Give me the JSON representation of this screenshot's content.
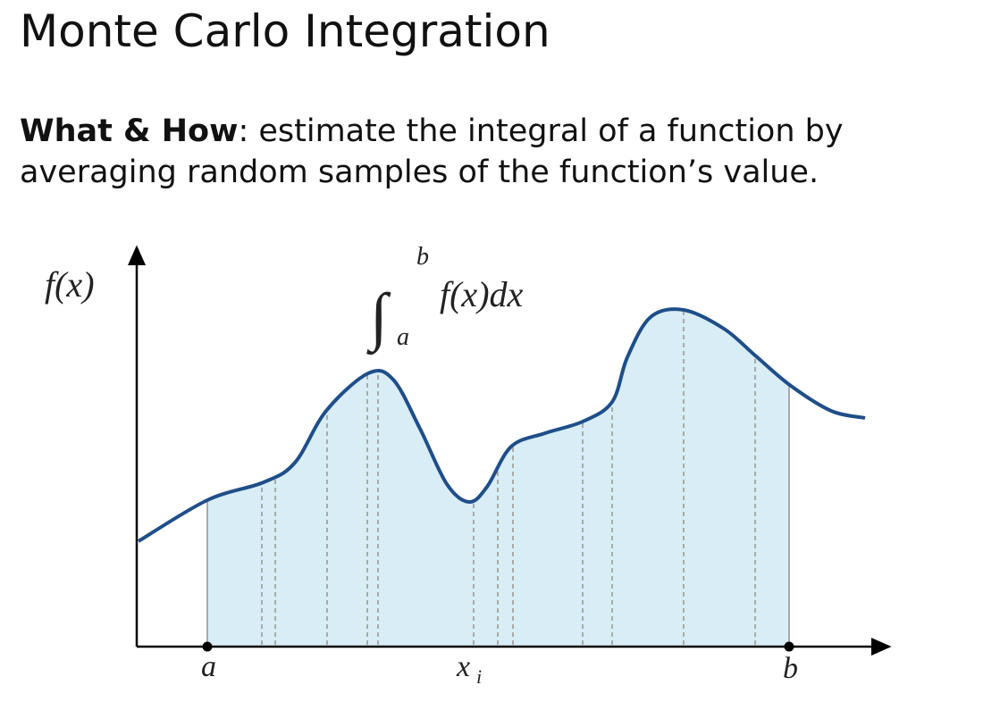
{
  "title": "Monte Carlo Integration",
  "body": {
    "lead": "What & How",
    "text": ": estimate the integral of a function by averaging random samples of the function’s value."
  },
  "figure": {
    "y_label": "f(x)",
    "integral": {
      "symbol": "∫",
      "upper": "b",
      "lower": "a",
      "integrand": "f(x)dx"
    },
    "x_labels": {
      "a": "a",
      "xi": "x",
      "xi_sub": "i",
      "b": "b"
    }
  }
}
